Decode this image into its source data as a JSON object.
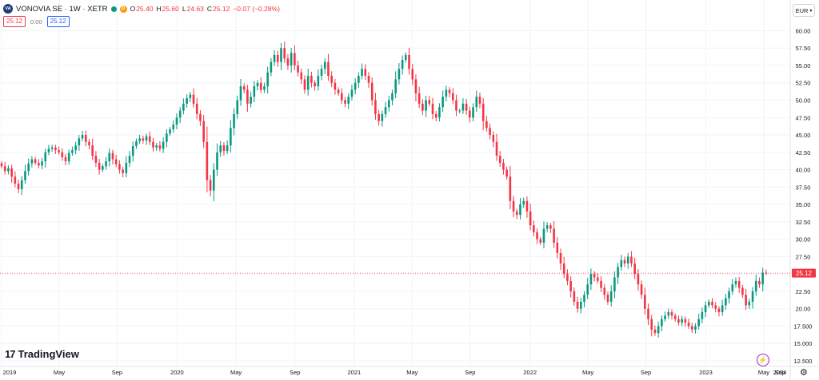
{
  "header": {
    "logo_text": "VA",
    "symbol": "VONOVIA SE · 1W · XETR",
    "d_badge": "D",
    "ohlc": {
      "o_label": "O",
      "o_value": "25.40",
      "h_label": "H",
      "h_value": "25.60",
      "l_label": "L",
      "l_value": "24.63",
      "c_label": "C",
      "c_value": "25.12",
      "change": "−0.07 (−0.28%)"
    },
    "sell_price": "25.12",
    "spread": "0.00",
    "buy_price": "25.12",
    "currency": "EUR",
    "currency_arrow": "▾"
  },
  "branding": {
    "name": "TradingView",
    "mark": "17"
  },
  "colors": {
    "up": "#089981",
    "down": "#f23645",
    "grid": "#f0f3fa",
    "axis_text": "#131722"
  },
  "chart_data": {
    "type": "candlestick",
    "interval": "1W",
    "last_price": 25.12,
    "last_price_label": "25.12",
    "ylim": [
      12.5,
      61.2
    ],
    "y_ticks": [
      "60.00",
      "57.50",
      "55.00",
      "52.50",
      "50.00",
      "47.50",
      "45.00",
      "42.50",
      "40.00",
      "37.50",
      "35.00",
      "32.50",
      "30.00",
      "27.50",
      "25.00",
      "22.50",
      "20.00",
      "17.500",
      "15.000",
      "12.500"
    ],
    "x_ticks": [
      {
        "label": "2019",
        "t": 0.0
      },
      {
        "label": "May",
        "t": 17.1
      },
      {
        "label": "Sep",
        "t": 34.3
      },
      {
        "label": "2020",
        "t": 52.1
      },
      {
        "label": "May",
        "t": 69.6
      },
      {
        "label": "Sep",
        "t": 87.1
      },
      {
        "label": "2021",
        "t": 104.7
      },
      {
        "label": "May",
        "t": 121.9
      },
      {
        "label": "Sep",
        "t": 139.1
      },
      {
        "label": "2022",
        "t": 156.9
      },
      {
        "label": "May",
        "t": 174.1
      },
      {
        "label": "Sep",
        "t": 191.3
      },
      {
        "label": "2023",
        "t": 209.1
      },
      {
        "label": "May",
        "t": 226.3
      },
      {
        "label": "Sep",
        "t": 243.6
      },
      {
        "label": "2024",
        "t": 261.3
      }
    ],
    "closes": [
      40.5,
      39.8,
      40.2,
      39.0,
      38.0,
      37.2,
      38.5,
      39.8,
      40.9,
      41.5,
      41.0,
      40.6,
      41.2,
      42.5,
      43.0,
      43.2,
      42.8,
      42.5,
      41.8,
      41.2,
      42.4,
      42.8,
      43.5,
      44.5,
      45.0,
      44.0,
      43.5,
      42.0,
      41.0,
      40.0,
      40.5,
      41.2,
      42.4,
      41.5,
      40.8,
      40.0,
      39.5,
      41.0,
      42.0,
      43.4,
      44.1,
      44.5,
      44.2,
      44.8,
      44.0,
      43.2,
      43.5,
      43.0,
      44.0,
      45.2,
      45.8,
      46.5,
      47.5,
      48.5,
      49.5,
      50.3,
      50.8,
      49.5,
      48.0,
      47.0,
      44.0,
      38.5,
      37.0,
      40.0,
      42.5,
      43.5,
      42.7,
      43.5,
      46.0,
      48.0,
      50.0,
      52.0,
      51.5,
      49.5,
      50.5,
      52.0,
      52.5,
      51.5,
      52.0,
      54.0,
      55.5,
      56.5,
      55.5,
      57.5,
      56.0,
      55.0,
      56.8,
      55.0,
      54.0,
      53.0,
      51.5,
      53.5,
      52.5,
      52.0,
      53.5,
      54.5,
      55.5,
      53.5,
      52.5,
      51.5,
      51.0,
      50.0,
      49.5,
      50.5,
      51.5,
      52.5,
      53.5,
      54.5,
      53.5,
      52.5,
      50.0,
      48.0,
      47.0,
      48.0,
      49.0,
      50.0,
      51.0,
      53.0,
      54.5,
      55.8,
      56.5,
      54.5,
      53.0,
      51.0,
      49.5,
      48.5,
      50.0,
      49.5,
      48.0,
      47.5,
      49.0,
      50.5,
      51.5,
      51.0,
      50.0,
      48.5,
      48.5,
      49.5,
      48.5,
      47.5,
      49.0,
      50.5,
      49.5,
      47.0,
      46.0,
      45.0,
      44.0,
      42.0,
      41.0,
      40.0,
      39.0,
      35.5,
      34.0,
      33.5,
      35.0,
      35.5,
      34.0,
      32.0,
      31.0,
      30.0,
      29.5,
      31.5,
      32.0,
      31.5,
      29.5,
      28.0,
      26.5,
      25.0,
      24.0,
      22.5,
      21.0,
      20.0,
      21.0,
      22.0,
      23.5,
      25.0,
      24.5,
      24.0,
      23.0,
      22.0,
      21.0,
      22.5,
      24.5,
      26.0,
      27.0,
      26.5,
      27.5,
      26.5,
      25.0,
      23.5,
      22.0,
      20.0,
      18.5,
      17.0,
      16.5,
      17.5,
      18.5,
      19.0,
      19.5,
      19.0,
      18.5,
      18.0,
      18.5,
      18.0,
      17.5,
      17.0,
      17.5,
      18.5,
      19.5,
      20.5,
      21.0,
      20.5,
      20.0,
      19.5,
      20.5,
      21.5,
      22.5,
      23.5,
      24.0,
      23.0,
      22.0,
      20.5,
      21.0,
      22.5,
      24.0,
      23.5,
      25.19,
      25.12
    ]
  }
}
